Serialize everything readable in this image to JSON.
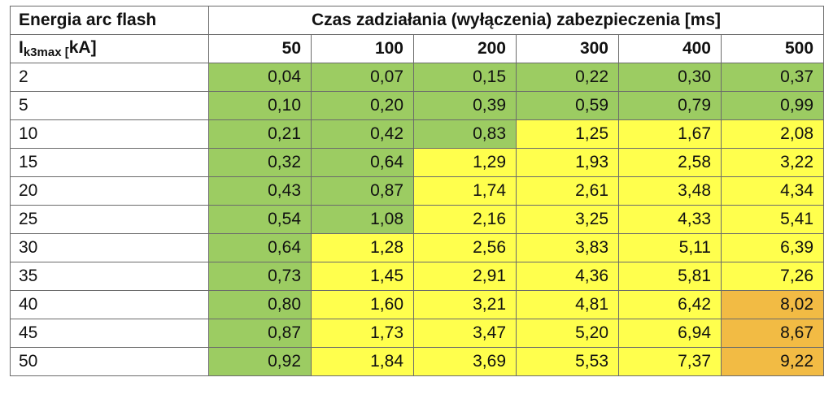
{
  "table": {
    "title_left": "Energia arc flash",
    "title_right": "Czas zadziałania (wyłączenia) zabezpieczenia [ms]",
    "row_header": {
      "main": "I",
      "sub": "k3max [",
      "unit": "kA]"
    },
    "columns": [
      "50",
      "100",
      "200",
      "300",
      "400",
      "500"
    ],
    "colors": {
      "green": "#9ccc62",
      "yellow": "#ffff4d",
      "orange": "#f2bb44"
    },
    "rows": [
      {
        "label": "2",
        "values": [
          "0,04",
          "0,07",
          "0,15",
          "0,22",
          "0,30",
          "0,37"
        ],
        "levels": [
          "green",
          "green",
          "green",
          "green",
          "green",
          "green"
        ]
      },
      {
        "label": "5",
        "values": [
          "0,10",
          "0,20",
          "0,39",
          "0,59",
          "0,79",
          "0,99"
        ],
        "levels": [
          "green",
          "green",
          "green",
          "green",
          "green",
          "green"
        ]
      },
      {
        "label": "10",
        "values": [
          "0,21",
          "0,42",
          "0,83",
          "1,25",
          "1,67",
          "2,08"
        ],
        "levels": [
          "green",
          "green",
          "green",
          "yellow",
          "yellow",
          "yellow"
        ]
      },
      {
        "label": "15",
        "values": [
          "0,32",
          "0,64",
          "1,29",
          "1,93",
          "2,58",
          "3,22"
        ],
        "levels": [
          "green",
          "green",
          "yellow",
          "yellow",
          "yellow",
          "yellow"
        ]
      },
      {
        "label": "20",
        "values": [
          "0,43",
          "0,87",
          "1,74",
          "2,61",
          "3,48",
          "4,34"
        ],
        "levels": [
          "green",
          "green",
          "yellow",
          "yellow",
          "yellow",
          "yellow"
        ]
      },
      {
        "label": "25",
        "values": [
          "0,54",
          "1,08",
          "2,16",
          "3,25",
          "4,33",
          "5,41"
        ],
        "levels": [
          "green",
          "green",
          "yellow",
          "yellow",
          "yellow",
          "yellow"
        ]
      },
      {
        "label": "30",
        "values": [
          "0,64",
          "1,28",
          "2,56",
          "3,83",
          "5,11",
          "6,39"
        ],
        "levels": [
          "green",
          "yellow",
          "yellow",
          "yellow",
          "yellow",
          "yellow"
        ]
      },
      {
        "label": "35",
        "values": [
          "0,73",
          "1,45",
          "2,91",
          "4,36",
          "5,81",
          "7,26"
        ],
        "levels": [
          "green",
          "yellow",
          "yellow",
          "yellow",
          "yellow",
          "yellow"
        ]
      },
      {
        "label": "40",
        "values": [
          "0,80",
          "1,60",
          "3,21",
          "4,81",
          "6,42",
          "8,02"
        ],
        "levels": [
          "green",
          "yellow",
          "yellow",
          "yellow",
          "yellow",
          "orange"
        ]
      },
      {
        "label": "45",
        "values": [
          "0,87",
          "1,73",
          "3,47",
          "5,20",
          "6,94",
          "8,67"
        ],
        "levels": [
          "green",
          "yellow",
          "yellow",
          "yellow",
          "yellow",
          "orange"
        ]
      },
      {
        "label": "50",
        "values": [
          "0,92",
          "1,84",
          "3,69",
          "5,53",
          "7,37",
          "9,22"
        ],
        "levels": [
          "green",
          "yellow",
          "yellow",
          "yellow",
          "yellow",
          "orange"
        ]
      }
    ]
  }
}
